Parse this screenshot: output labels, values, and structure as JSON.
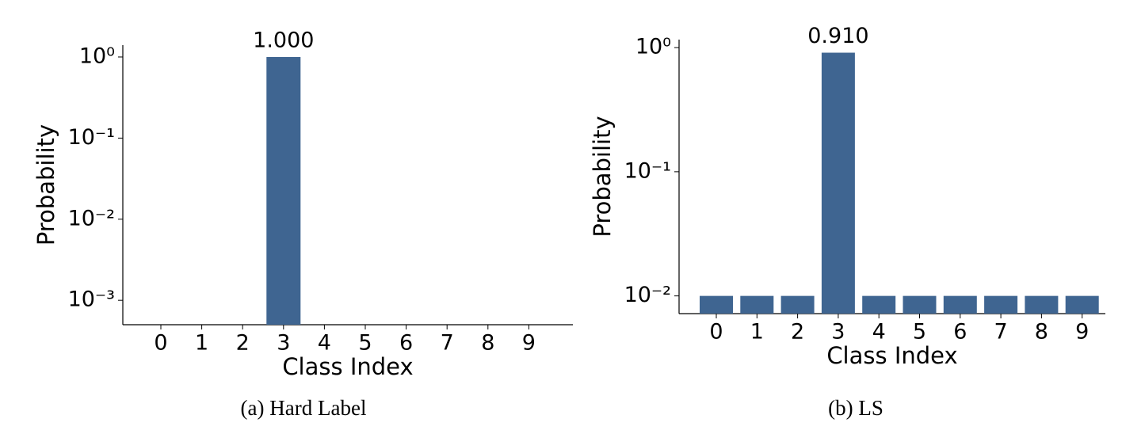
{
  "chart_data": [
    {
      "type": "bar",
      "log_y": true,
      "caption": "(a) Hard Label",
      "xlabel": "Class Index",
      "ylabel": "Probability",
      "categories": [
        "0",
        "1",
        "2",
        "3",
        "4",
        "5",
        "6",
        "7",
        "8",
        "9"
      ],
      "values": [
        0,
        0,
        0,
        1,
        0,
        0,
        0,
        0,
        0,
        0
      ],
      "value_labels": [
        null,
        null,
        null,
        "1.000",
        null,
        null,
        null,
        null,
        null,
        null
      ],
      "color": "#3f6591",
      "ylim": [
        0.0005,
        1.4
      ],
      "yticks": [
        {
          "value": 0.001,
          "label": "10⁻³"
        },
        {
          "value": 0.01,
          "label": "10⁻²"
        },
        {
          "value": 0.1,
          "label": "10⁻¹"
        },
        {
          "value": 1,
          "label": "10⁰"
        }
      ]
    },
    {
      "type": "bar",
      "log_y": true,
      "caption": "(b) LS",
      "xlabel": "Class Index",
      "ylabel": "Probability",
      "categories": [
        "0",
        "1",
        "2",
        "3",
        "4",
        "5",
        "6",
        "7",
        "8",
        "9"
      ],
      "values": [
        0.01,
        0.01,
        0.01,
        0.91,
        0.01,
        0.01,
        0.01,
        0.01,
        0.01,
        0.01
      ],
      "value_labels": [
        null,
        null,
        null,
        "0.910",
        null,
        null,
        null,
        null,
        null,
        null
      ],
      "color": "#3f6591",
      "ylim": [
        0.0072,
        1.16
      ],
      "yticks": [
        {
          "value": 0.01,
          "label": "10⁻²"
        },
        {
          "value": 0.1,
          "label": "10⁻¹"
        },
        {
          "value": 1,
          "label": "10⁰"
        }
      ]
    }
  ]
}
